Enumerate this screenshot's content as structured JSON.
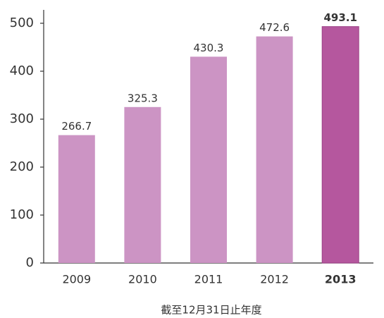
{
  "chart_data": {
    "type": "bar",
    "x_label": "截至12月31日止年度",
    "categories": [
      "2009",
      "2010",
      "2011",
      "2012",
      "2013"
    ],
    "values": [
      266.7,
      325.3,
      430.3,
      472.6,
      493.1
    ],
    "colors": [
      "#cc94c4",
      "#cc94c4",
      "#cc94c4",
      "#cc94c4",
      "#b5579e"
    ],
    "ylim": [
      0,
      500
    ],
    "yticks": [
      0,
      100,
      200,
      300,
      400,
      500
    ],
    "grid": false
  }
}
